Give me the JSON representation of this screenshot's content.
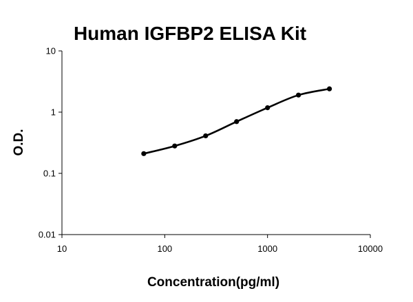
{
  "chart_data": {
    "type": "line",
    "title": "Human IGFBP2 ELISA Kit",
    "xlabel": "Concentration(pg/ml)",
    "ylabel": "O.D.",
    "x_scale": "log",
    "y_scale": "log",
    "xlim": [
      10,
      10000
    ],
    "ylim": [
      0.01,
      10
    ],
    "x_ticks": [
      "10",
      "100",
      "1000",
      "10000"
    ],
    "y_ticks": [
      "0.01",
      "0.1",
      "1",
      "10"
    ],
    "grid": false,
    "legend": "none",
    "series": [
      {
        "x": [
          62.5,
          125,
          250,
          500,
          1000,
          2000,
          4000
        ],
        "y": [
          0.21,
          0.28,
          0.41,
          0.7,
          1.18,
          1.9,
          2.4
        ]
      }
    ],
    "colors": {
      "line": "#000000",
      "marker": "#000000",
      "axis": "#000000"
    }
  }
}
